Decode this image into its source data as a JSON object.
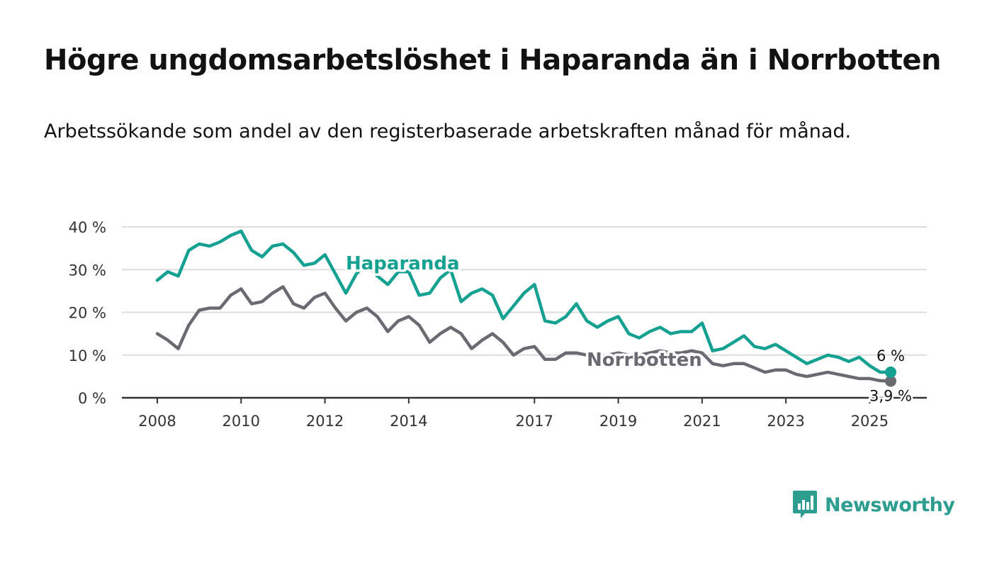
{
  "title": "Högre ungdomsarbetslöshet i Haparanda än i Norrbotten",
  "subtitle": "Arbetssökande som andel av den registerbaserade arbetskraften månad för månad.",
  "brand": {
    "name": "Newsworthy"
  },
  "colors": {
    "haparanda": "#14a192",
    "norrbotten": "#6b6a72",
    "grid": "#dddddd",
    "axis": "#333333"
  },
  "chart_data": {
    "type": "line",
    "x_ticks": [
      "2008",
      "2010",
      "2012",
      "2014",
      "2017",
      "2019",
      "2021",
      "2023",
      "2025"
    ],
    "y_ticks": [
      "0 %",
      "10 %",
      "20 %",
      "30 %",
      "40 %"
    ],
    "ylim": [
      0,
      40
    ],
    "xlim": [
      2008,
      2025.5
    ],
    "grid": true,
    "end_labels": {
      "haparanda": "6 %",
      "norrbotten": "3,9 %"
    },
    "series": [
      {
        "name": "Haparanda",
        "x": [
          2008.0,
          2008.25,
          2008.5,
          2008.75,
          2009.0,
          2009.25,
          2009.5,
          2009.75,
          2010.0,
          2010.25,
          2010.5,
          2010.75,
          2011.0,
          2011.25,
          2011.5,
          2011.75,
          2012.0,
          2012.25,
          2012.5,
          2012.75,
          2013.0,
          2013.25,
          2013.5,
          2013.75,
          2014.0,
          2014.25,
          2014.5,
          2014.75,
          2015.0,
          2015.25,
          2015.5,
          2015.75,
          2016.0,
          2016.25,
          2016.5,
          2016.75,
          2017.0,
          2017.25,
          2017.5,
          2017.75,
          2018.0,
          2018.25,
          2018.5,
          2018.75,
          2019.0,
          2019.25,
          2019.5,
          2019.75,
          2020.0,
          2020.25,
          2020.5,
          2020.75,
          2021.0,
          2021.25,
          2021.5,
          2021.75,
          2022.0,
          2022.25,
          2022.5,
          2022.75,
          2023.0,
          2023.25,
          2023.5,
          2023.75,
          2024.0,
          2024.25,
          2024.5,
          2024.75,
          2025.0,
          2025.25,
          2025.5
        ],
        "values": [
          27.5,
          29.5,
          28.5,
          34.5,
          36.0,
          35.5,
          36.5,
          38.0,
          39.0,
          34.5,
          33.0,
          35.5,
          36.0,
          34.0,
          31.0,
          31.5,
          33.5,
          29.0,
          24.5,
          29.0,
          31.5,
          28.5,
          26.5,
          29.5,
          29.5,
          24.0,
          24.5,
          28.0,
          30.0,
          22.5,
          24.5,
          25.5,
          24.0,
          18.5,
          21.5,
          24.5,
          26.5,
          18.0,
          17.5,
          19.0,
          22.0,
          18.0,
          16.5,
          18.0,
          19.0,
          15.0,
          14.0,
          15.5,
          16.5,
          15.0,
          15.5,
          15.5,
          17.5,
          11.0,
          11.5,
          13.0,
          14.5,
          12.0,
          11.5,
          12.5,
          11.0,
          9.5,
          8.0,
          9.0,
          10.0,
          9.5,
          8.5,
          9.5,
          7.5,
          6.0,
          6.0
        ]
      },
      {
        "name": "Norrbotten",
        "x": [
          2008.0,
          2008.25,
          2008.5,
          2008.75,
          2009.0,
          2009.25,
          2009.5,
          2009.75,
          2010.0,
          2010.25,
          2010.5,
          2010.75,
          2011.0,
          2011.25,
          2011.5,
          2011.75,
          2012.0,
          2012.25,
          2012.5,
          2012.75,
          2013.0,
          2013.25,
          2013.5,
          2013.75,
          2014.0,
          2014.25,
          2014.5,
          2014.75,
          2015.0,
          2015.25,
          2015.5,
          2015.75,
          2016.0,
          2016.25,
          2016.5,
          2016.75,
          2017.0,
          2017.25,
          2017.5,
          2017.75,
          2018.0,
          2018.25,
          2018.5,
          2018.75,
          2019.0,
          2019.25,
          2019.5,
          2019.75,
          2020.0,
          2020.25,
          2020.5,
          2020.75,
          2021.0,
          2021.25,
          2021.5,
          2021.75,
          2022.0,
          2022.25,
          2022.5,
          2022.75,
          2023.0,
          2023.25,
          2023.5,
          2023.75,
          2024.0,
          2024.25,
          2024.5,
          2024.75,
          2025.0,
          2025.25,
          2025.5
        ],
        "values": [
          15.0,
          13.5,
          11.5,
          17.0,
          20.5,
          21.0,
          21.0,
          24.0,
          25.5,
          22.0,
          22.5,
          24.5,
          26.0,
          22.0,
          21.0,
          23.5,
          24.5,
          21.0,
          18.0,
          20.0,
          21.0,
          19.0,
          15.5,
          18.0,
          19.0,
          17.0,
          13.0,
          15.0,
          16.5,
          15.0,
          11.5,
          13.5,
          15.0,
          13.0,
          10.0,
          11.5,
          12.0,
          9.0,
          9.0,
          10.5,
          10.5,
          10.0,
          9.5,
          10.0,
          10.5,
          10.0,
          10.0,
          10.5,
          11.0,
          10.5,
          10.5,
          11.0,
          10.5,
          8.0,
          7.5,
          8.0,
          8.0,
          7.0,
          6.0,
          6.5,
          6.5,
          5.5,
          5.0,
          5.5,
          6.0,
          5.5,
          5.0,
          4.5,
          4.5,
          4.0,
          3.9
        ]
      }
    ]
  }
}
